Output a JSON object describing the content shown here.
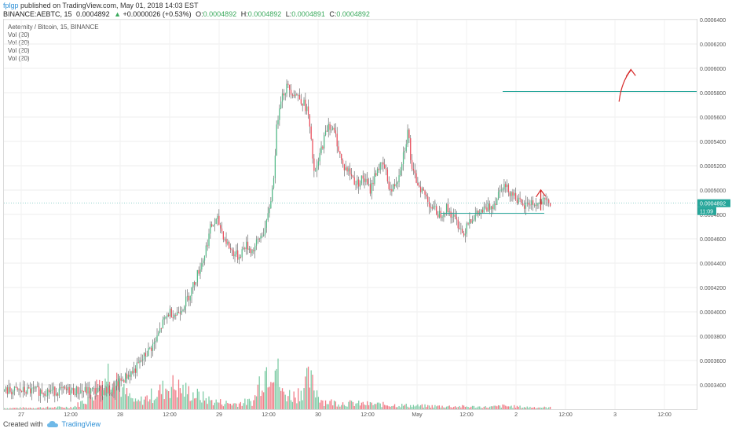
{
  "header": {
    "user": "fplgp",
    "published": "published on TradingView.com, May 01, 2018 14:03 EST",
    "symbol": "BINANCE:AEBTC, 15",
    "last": "0.0004892",
    "arrow": "▲",
    "change": "+0.0000026 (+0.53%)",
    "o_label": "O:",
    "o_value": "0.0004892",
    "h_label": "H:",
    "h_value": "0.0004892",
    "l_label": "L:",
    "l_value": "0.0004891",
    "c_label": "C:",
    "c_value": "0.0004892"
  },
  "legend": {
    "title": "Aeternity / Bitcoin, 15, BINANCE",
    "vol": [
      "Vol (20)",
      "Vol (20)",
      "Vol (20)",
      "Vol (20)"
    ]
  },
  "footer": {
    "created": "Created with",
    "brand": "TradingView",
    "logo_icon": "tradingview-cloud-icon"
  },
  "colors": {
    "up": "#53b987",
    "down": "#eb4d5c",
    "line": "#26a69a",
    "ma": "#f5d76e",
    "annotation": "#d62828",
    "bg": "#ffffff"
  },
  "chart_data": {
    "type": "candlestick",
    "ylim": [
      0.00032,
      0.00064
    ],
    "y_ticks": [
      "0.0003400",
      "0.0003600",
      "0.0003800",
      "0.0004000",
      "0.0004200",
      "0.0004400",
      "0.0004600",
      "0.0004800",
      "0.0005000",
      "0.0005200",
      "0.0005400",
      "0.0005600",
      "0.0005800",
      "0.0006000",
      "0.0006200",
      "0.0006400"
    ],
    "x_ticks": [
      "27",
      "12:00",
      "28",
      "12:00",
      "29",
      "12:00",
      "30",
      "12:00",
      "May",
      "12:00",
      "2",
      "12:00",
      "3",
      "12:00"
    ],
    "last_price_label": "0.0004892",
    "countdown_label": "11:09",
    "price_path": [
      [
        0.0,
        0.000335
      ],
      [
        0.16,
        0.000335
      ],
      [
        0.165,
        0.00034
      ],
      [
        0.18,
        0.000348
      ],
      [
        0.19,
        0.000352
      ],
      [
        0.2,
        0.00036
      ],
      [
        0.21,
        0.000368
      ],
      [
        0.22,
        0.000375
      ],
      [
        0.23,
        0.00039
      ],
      [
        0.24,
        0.0004
      ],
      [
        0.25,
        0.000398
      ],
      [
        0.26,
        0.000405
      ],
      [
        0.27,
        0.000415
      ],
      [
        0.28,
        0.00043
      ],
      [
        0.29,
        0.000445
      ],
      [
        0.3,
        0.00047
      ],
      [
        0.31,
        0.000475
      ],
      [
        0.32,
        0.00046
      ],
      [
        0.33,
        0.00045
      ],
      [
        0.34,
        0.000445
      ],
      [
        0.35,
        0.000455
      ],
      [
        0.36,
        0.00045
      ],
      [
        0.37,
        0.00046
      ],
      [
        0.38,
        0.00047
      ],
      [
        0.39,
        0.000505
      ],
      [
        0.395,
        0.00055
      ],
      [
        0.4,
        0.000575
      ],
      [
        0.41,
        0.000585
      ],
      [
        0.42,
        0.00058
      ],
      [
        0.43,
        0.000575
      ],
      [
        0.44,
        0.000565
      ],
      [
        0.45,
        0.00051
      ],
      [
        0.46,
        0.000535
      ],
      [
        0.47,
        0.000555
      ],
      [
        0.48,
        0.000545
      ],
      [
        0.49,
        0.00052
      ],
      [
        0.5,
        0.000515
      ],
      [
        0.51,
        0.000505
      ],
      [
        0.52,
        0.00051
      ],
      [
        0.53,
        0.0005
      ],
      [
        0.54,
        0.000518
      ],
      [
        0.55,
        0.00052
      ],
      [
        0.56,
        0.000498
      ],
      [
        0.57,
        0.00051
      ],
      [
        0.58,
        0.000535
      ],
      [
        0.585,
        0.00055
      ],
      [
        0.59,
        0.000515
      ],
      [
        0.6,
        0.000505
      ],
      [
        0.61,
        0.000495
      ],
      [
        0.62,
        0.000485
      ],
      [
        0.63,
        0.00048
      ],
      [
        0.64,
        0.000485
      ],
      [
        0.65,
        0.000478
      ],
      [
        0.66,
        0.00047
      ],
      [
        0.665,
        0.000462
      ],
      [
        0.67,
        0.000475
      ],
      [
        0.68,
        0.000478
      ],
      [
        0.69,
        0.000482
      ],
      [
        0.7,
        0.000485
      ],
      [
        0.71,
        0.00049
      ],
      [
        0.72,
        0.000505
      ],
      [
        0.73,
        0.0005
      ],
      [
        0.74,
        0.000495
      ],
      [
        0.75,
        0.000485
      ],
      [
        0.76,
        0.00049
      ],
      [
        0.77,
        0.000488
      ],
      [
        0.78,
        0.00049
      ],
      [
        0.79,
        0.000489
      ]
    ],
    "volume_path": [
      [
        0.0,
        0.02
      ],
      [
        0.05,
        0.03
      ],
      [
        0.1,
        0.04
      ],
      [
        0.12,
        0.2
      ],
      [
        0.16,
        0.85
      ],
      [
        0.17,
        0.35
      ],
      [
        0.19,
        0.12
      ],
      [
        0.22,
        0.3
      ],
      [
        0.24,
        0.45
      ],
      [
        0.26,
        0.35
      ],
      [
        0.28,
        0.25
      ],
      [
        0.3,
        0.15
      ],
      [
        0.33,
        0.1
      ],
      [
        0.36,
        0.15
      ],
      [
        0.37,
        0.6
      ],
      [
        0.39,
        1.0
      ],
      [
        0.4,
        0.3
      ],
      [
        0.42,
        0.25
      ],
      [
        0.44,
        0.55
      ],
      [
        0.46,
        0.15
      ],
      [
        0.48,
        0.12
      ],
      [
        0.52,
        0.1
      ],
      [
        0.56,
        0.08
      ],
      [
        0.6,
        0.06
      ],
      [
        0.66,
        0.05
      ],
      [
        0.7,
        0.04
      ],
      [
        0.72,
        0.06
      ],
      [
        0.75,
        0.04
      ],
      [
        0.79,
        0.03
      ]
    ],
    "horizontal_lines": [
      {
        "price": 0.000581,
        "x_start": 0.72,
        "x_end": 1.0
      },
      {
        "price": 0.000481,
        "x_start": 0.63,
        "x_end": 0.78
      }
    ],
    "annotations": [
      {
        "type": "arrow-up",
        "x": 0.775,
        "price": 0.000493
      },
      {
        "type": "arrow-up",
        "x": 0.905,
        "price": 0.000592
      }
    ]
  }
}
